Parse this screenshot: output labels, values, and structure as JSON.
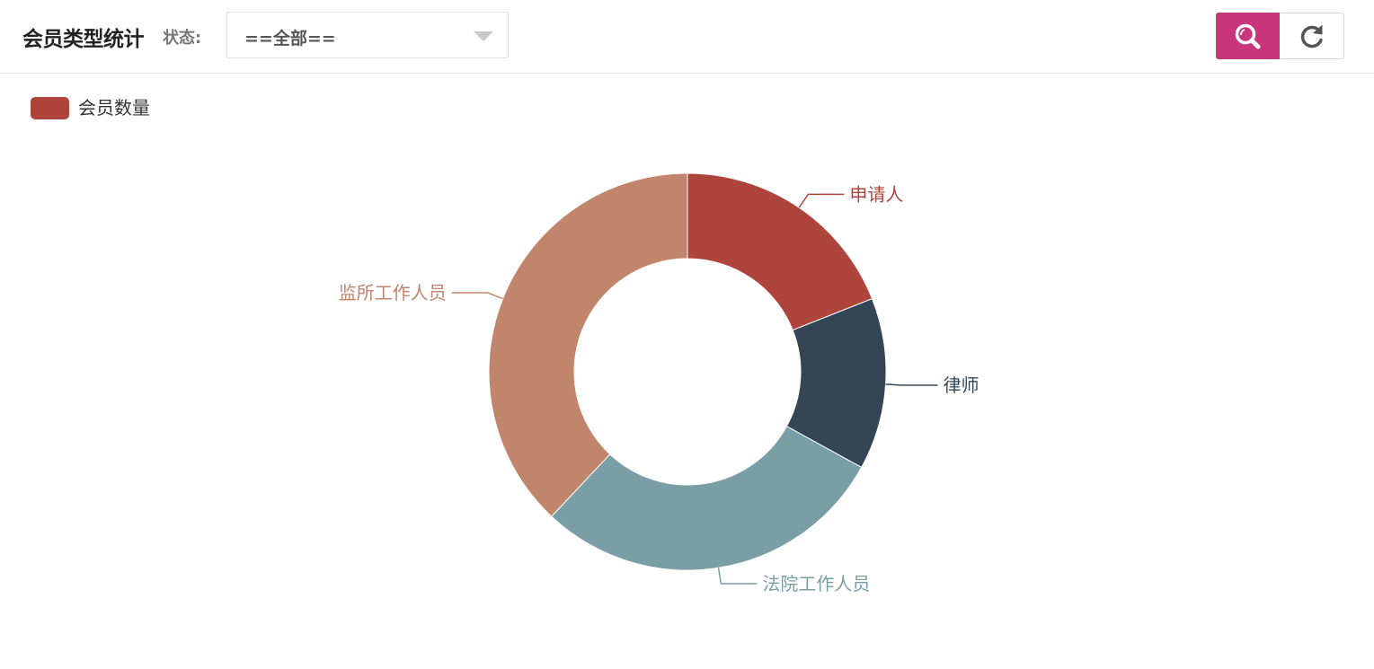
{
  "header": {
    "title": "会员类型统计",
    "status_label": "状态:",
    "status_select": {
      "value": "==全部=="
    }
  },
  "toolbar": {
    "search_icon": "search-icon",
    "refresh_icon": "refresh-icon",
    "search_color": "#c9357c"
  },
  "legend": {
    "label": "会员数量",
    "color": "#ae443b"
  },
  "chart_data": {
    "type": "pie",
    "variant": "donut",
    "series": [
      {
        "name": "会员数量",
        "slices": [
          {
            "label": "申请人",
            "value": 19,
            "color": "#ae443b"
          },
          {
            "label": "律师",
            "value": 14,
            "color": "#344656"
          },
          {
            "label": "法院工作人员",
            "value": 29,
            "color": "#799ea5"
          },
          {
            "label": "监所工作人员",
            "value": 38,
            "color": "#c1856c"
          }
        ]
      }
    ],
    "legend_position": "top-left"
  }
}
